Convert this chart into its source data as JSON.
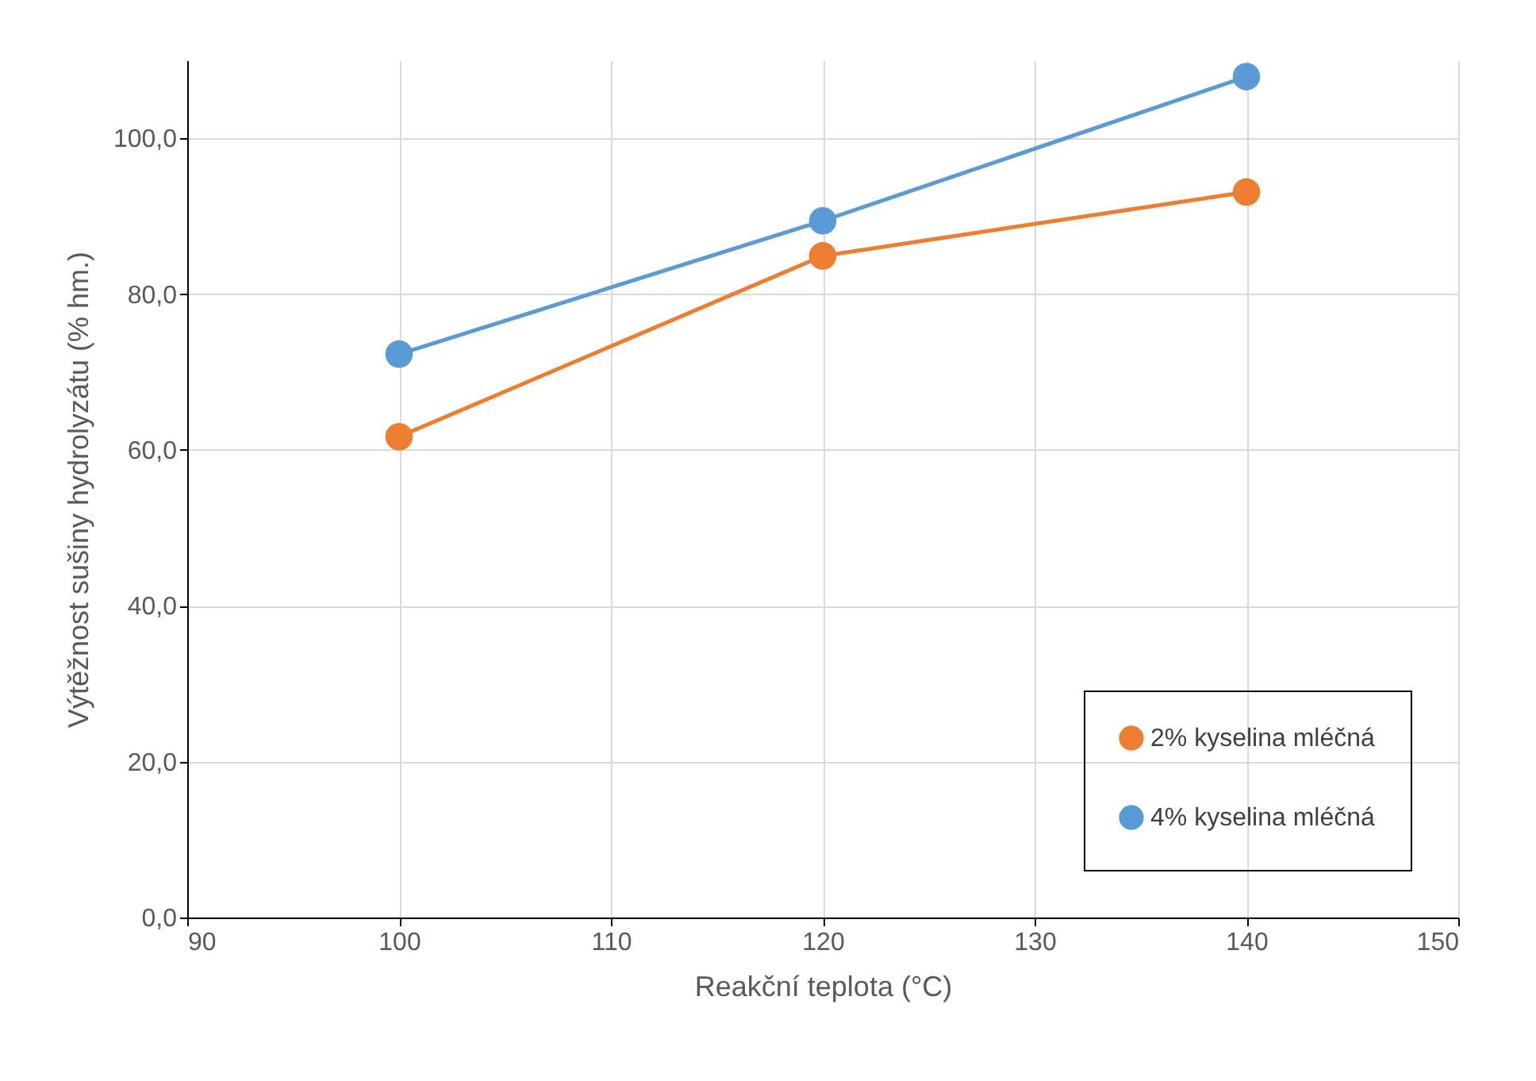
{
  "chart_data": {
    "type": "line",
    "xlabel": "Reakční teplota (°C)",
    "ylabel": "Výtěžnost sušiny hydrolyzátu (% hm.)",
    "x": [
      100,
      120,
      140
    ],
    "series": [
      {
        "name": "2% kyselina mléčná",
        "color": "#ed7d31",
        "values": [
          61.7,
          84.9,
          93.1
        ]
      },
      {
        "name": "4% kyselina mléčná",
        "color": "#5b9bd5",
        "values": [
          72.3,
          89.4,
          107.9
        ]
      }
    ],
    "xlim": [
      90,
      150
    ],
    "xticks": [
      90,
      100,
      110,
      120,
      130,
      140,
      150
    ],
    "ylim": [
      0,
      110
    ],
    "yticks": [
      {
        "value": 0,
        "label": "0,0"
      },
      {
        "value": 20,
        "label": "20,0"
      },
      {
        "value": 40,
        "label": "40,0"
      },
      {
        "value": 60,
        "label": "60,0"
      },
      {
        "value": 80,
        "label": "80,0"
      },
      {
        "value": 100,
        "label": "100,0"
      }
    ],
    "grid": true,
    "legend": "bottom right",
    "marker": "circle",
    "line_style": "solid"
  }
}
